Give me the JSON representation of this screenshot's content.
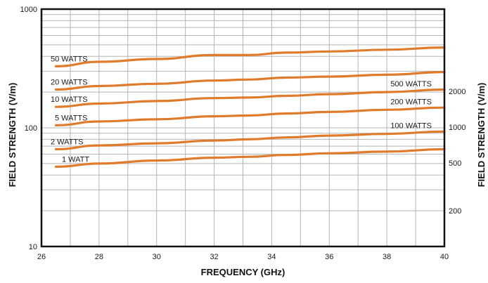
{
  "chart_data": {
    "type": "line",
    "title": "",
    "xlabel": "FREQUENCY (GHz)",
    "ylabel": "FIELD STRENGTH (V/m)",
    "ylabel_right": "FIELD STRENGTH (V/m)",
    "x_ticks": [
      "26",
      "28",
      "30",
      "32",
      "34",
      "36",
      "38",
      "40"
    ],
    "y_ticks": [
      {
        "value": 1000,
        "label": "1000"
      },
      {
        "value": 100,
        "label": "100"
      },
      {
        "value": 10,
        "label": "10"
      }
    ],
    "y_right_ticks": [
      {
        "value": 2000,
        "label": "2000"
      },
      {
        "value": 1000,
        "label": "1000"
      },
      {
        "value": 500,
        "label": "500"
      },
      {
        "value": 200,
        "label": "200"
      }
    ],
    "xlim": [
      26,
      40
    ],
    "ylim": [
      10,
      1000
    ],
    "y_scale": "log",
    "y_right_scale": "log",
    "y_right_lim": [
      0,
      2000
    ],
    "grid": true,
    "line_color": "#e07b2c",
    "series": [
      {
        "name": "50 WATTS",
        "x": [
          26.5,
          28,
          30,
          32,
          33.2,
          34.5,
          36,
          38,
          40
        ],
        "values": [
          330,
          360,
          380,
          410,
          410,
          430,
          440,
          455,
          475
        ]
      },
      {
        "name": "20 WATTS",
        "x": [
          26.5,
          28,
          30,
          32,
          33.2,
          34.5,
          36,
          38,
          40
        ],
        "values": [
          210,
          225,
          235,
          250,
          255,
          265,
          270,
          280,
          295
        ]
      },
      {
        "name": "10 WATTS",
        "x": [
          26.5,
          28,
          30,
          32,
          33.2,
          34.5,
          36,
          38,
          40
        ],
        "values": [
          150,
          160,
          168,
          178,
          180,
          186,
          192,
          200,
          210
        ]
      },
      {
        "name": "5 WATTS",
        "x": [
          26.5,
          28,
          30,
          32,
          33.2,
          34.5,
          36,
          38,
          40
        ],
        "values": [
          105,
          113,
          118,
          125,
          127,
          132,
          136,
          142,
          148
        ]
      },
      {
        "name": "2 WATTS",
        "x": [
          26.5,
          28,
          30,
          32,
          33.2,
          34.5,
          36,
          38,
          40
        ],
        "values": [
          66,
          71,
          74,
          78,
          80,
          83,
          86,
          89,
          93
        ]
      },
      {
        "name": "1 WATT",
        "x": [
          26.5,
          28,
          30,
          32,
          33.2,
          34.5,
          36,
          38,
          40
        ],
        "values": [
          47,
          50,
          53,
          56,
          57,
          59,
          61,
          63,
          66
        ]
      }
    ],
    "right_labels": [
      "500 WATTS",
      "200 WATTS",
      "100 WATTS"
    ]
  }
}
